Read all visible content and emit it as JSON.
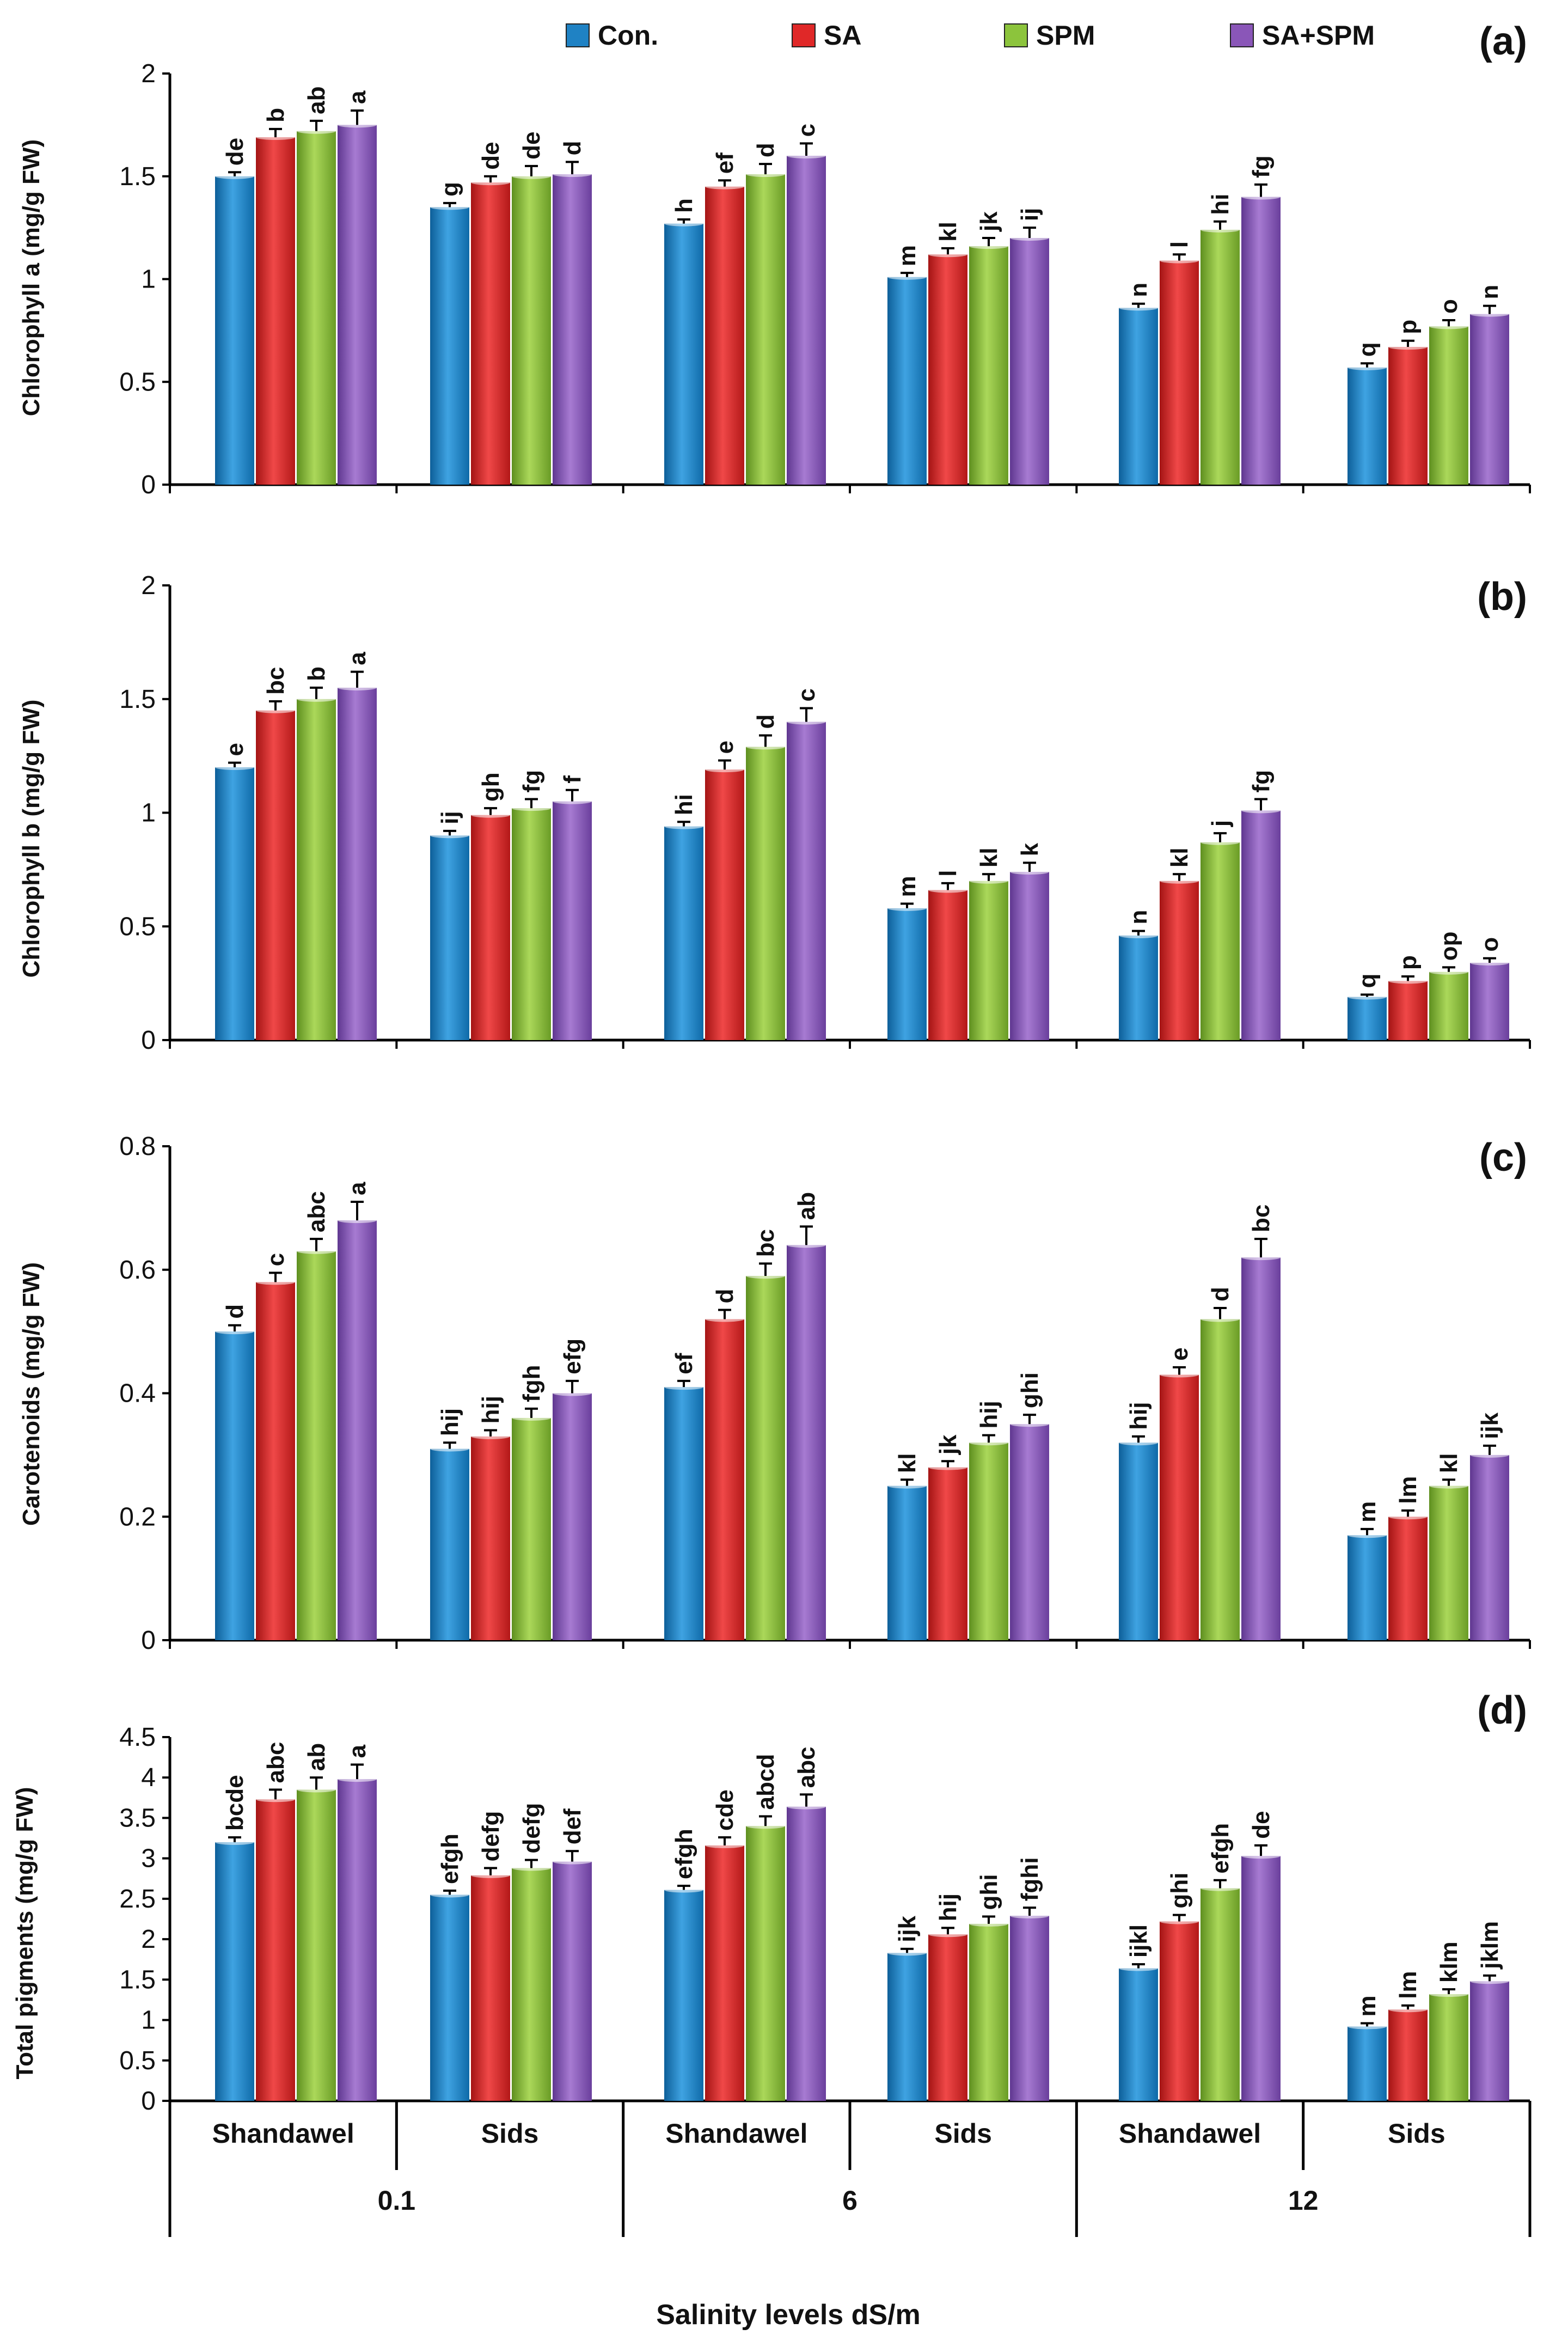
{
  "chart_data": [
    {
      "type": "bar",
      "panel": "(a)",
      "ylabel": "Chlorophyll a (mg/g FW)",
      "ylim": [
        0,
        2
      ],
      "yticks": [
        "0",
        "0.5",
        "1",
        "1.5",
        "2"
      ],
      "categories": [
        "Shandawel",
        "Sids",
        "Shandawel",
        "Sids",
        "Shandawel",
        "Sids"
      ],
      "series": [
        {
          "name": "Con.",
          "values": [
            1.5,
            1.35,
            1.27,
            1.01,
            0.86,
            0.57
          ],
          "errors": [
            0.02,
            0.02,
            0.02,
            0.02,
            0.02,
            0.02
          ],
          "letters": [
            "de",
            "g",
            "h",
            "m",
            "n",
            "q"
          ]
        },
        {
          "name": "SA",
          "values": [
            1.69,
            1.47,
            1.45,
            1.12,
            1.09,
            0.67
          ],
          "errors": [
            0.04,
            0.03,
            0.03,
            0.03,
            0.03,
            0.03
          ],
          "letters": [
            "b",
            "de",
            "ef",
            "kl",
            "l",
            "p"
          ]
        },
        {
          "name": "SPM",
          "values": [
            1.72,
            1.5,
            1.51,
            1.16,
            1.24,
            0.77
          ],
          "errors": [
            0.05,
            0.05,
            0.05,
            0.04,
            0.04,
            0.03
          ],
          "letters": [
            "ab",
            "de",
            "d",
            "jk",
            "hi",
            "o"
          ]
        },
        {
          "name": "SA+SPM",
          "values": [
            1.75,
            1.51,
            1.6,
            1.2,
            1.4,
            0.83
          ],
          "errors": [
            0.07,
            0.06,
            0.06,
            0.05,
            0.06,
            0.04
          ],
          "letters": [
            "a",
            "d",
            "c",
            "ij",
            "fg",
            "n"
          ]
        }
      ]
    },
    {
      "type": "bar",
      "panel": "(b)",
      "ylabel": "Chlorophyll b (mg/g FW)",
      "ylim": [
        0,
        2
      ],
      "yticks": [
        "0",
        "0.5",
        "1",
        "1.5",
        "2"
      ],
      "categories": [
        "Shandawel",
        "Sids",
        "Shandawel",
        "Sids",
        "Shandawel",
        "Sids"
      ],
      "series": [
        {
          "name": "Con.",
          "values": [
            1.2,
            0.9,
            0.94,
            0.58,
            0.46,
            0.19
          ],
          "errors": [
            0.02,
            0.02,
            0.02,
            0.02,
            0.02,
            0.01
          ],
          "letters": [
            "e",
            "ij",
            "hi",
            "m",
            "n",
            "q"
          ]
        },
        {
          "name": "SA",
          "values": [
            1.45,
            0.99,
            1.19,
            0.66,
            0.7,
            0.26
          ],
          "errors": [
            0.04,
            0.03,
            0.04,
            0.03,
            0.03,
            0.02
          ],
          "letters": [
            "bc",
            "gh",
            "e",
            "l",
            "kl",
            "p"
          ]
        },
        {
          "name": "SPM",
          "values": [
            1.5,
            1.02,
            1.29,
            0.7,
            0.87,
            0.3
          ],
          "errors": [
            0.05,
            0.04,
            0.05,
            0.03,
            0.04,
            0.02
          ],
          "letters": [
            "b",
            "fg",
            "d",
            "kl",
            "j",
            "op"
          ]
        },
        {
          "name": "SA+SPM",
          "values": [
            1.55,
            1.05,
            1.4,
            0.74,
            1.01,
            0.34
          ],
          "errors": [
            0.07,
            0.05,
            0.06,
            0.04,
            0.05,
            0.02
          ],
          "letters": [
            "a",
            "f",
            "c",
            "k",
            "fg",
            "o"
          ]
        }
      ]
    },
    {
      "type": "bar",
      "panel": "(c)",
      "ylabel": "Carotenoids (mg/g FW)",
      "ylim": [
        0,
        0.8
      ],
      "yticks": [
        "0",
        "0.2",
        "0.4",
        "0.6",
        "0.8"
      ],
      "categories": [
        "Shandawel",
        "Sids",
        "Shandawel",
        "Sids",
        "Shandawel",
        "Sids"
      ],
      "series": [
        {
          "name": "Con.",
          "values": [
            0.5,
            0.31,
            0.41,
            0.25,
            0.32,
            0.17
          ],
          "errors": [
            0.01,
            0.01,
            0.01,
            0.01,
            0.01,
            0.01
          ],
          "letters": [
            "d",
            "hij",
            "ef",
            "kl",
            "hij",
            "m"
          ]
        },
        {
          "name": "SA",
          "values": [
            0.58,
            0.33,
            0.52,
            0.28,
            0.43,
            0.2
          ],
          "errors": [
            0.015,
            0.01,
            0.015,
            0.01,
            0.012,
            0.01
          ],
          "letters": [
            "c",
            "hij",
            "d",
            "jk",
            "e",
            "lm"
          ]
        },
        {
          "name": "SPM",
          "values": [
            0.63,
            0.36,
            0.59,
            0.32,
            0.52,
            0.25
          ],
          "errors": [
            0.02,
            0.015,
            0.02,
            0.012,
            0.018,
            0.01
          ],
          "letters": [
            "abc",
            "fgh",
            "bc",
            "hij",
            "d",
            "kl"
          ]
        },
        {
          "name": "SA+SPM",
          "values": [
            0.68,
            0.4,
            0.64,
            0.35,
            0.62,
            0.3
          ],
          "errors": [
            0.03,
            0.02,
            0.03,
            0.015,
            0.03,
            0.015
          ],
          "letters": [
            "a",
            "efg",
            "ab",
            "ghi",
            "bc",
            "ijk"
          ]
        }
      ]
    },
    {
      "type": "bar",
      "panel": "(d)",
      "ylabel": "Total pigments (mg/g FW)",
      "ylim": [
        0,
        4.5
      ],
      "yticks": [
        "0",
        "0.5",
        "1",
        "1.5",
        "2",
        "2.5",
        "3",
        "3.5",
        "4",
        "4.5"
      ],
      "categories": [
        "Shandawel",
        "Sids",
        "Shandawel",
        "Sids",
        "Shandawel",
        "Sids"
      ],
      "series": [
        {
          "name": "Con.",
          "values": [
            3.2,
            2.55,
            2.61,
            1.83,
            1.64,
            0.92
          ],
          "errors": [
            0.06,
            0.05,
            0.05,
            0.05,
            0.05,
            0.04
          ],
          "letters": [
            "bcde",
            "efgh",
            "efgh",
            "ijk",
            "ijkl",
            "m"
          ]
        },
        {
          "name": "SA",
          "values": [
            3.73,
            2.79,
            3.16,
            2.06,
            2.22,
            1.13
          ],
          "errors": [
            0.12,
            0.09,
            0.1,
            0.08,
            0.08,
            0.05
          ],
          "letters": [
            "abc",
            "defg",
            "cde",
            "hij",
            "ghi",
            "lm"
          ]
        },
        {
          "name": "SPM",
          "values": [
            3.85,
            2.88,
            3.4,
            2.19,
            2.63,
            1.32
          ],
          "errors": [
            0.15,
            0.1,
            0.12,
            0.09,
            0.1,
            0.06
          ],
          "letters": [
            "ab",
            "defg",
            "abcd",
            "ghi",
            "efgh",
            "klm"
          ]
        },
        {
          "name": "SA+SPM",
          "values": [
            3.98,
            2.96,
            3.64,
            2.29,
            3.03,
            1.48
          ],
          "errors": [
            0.18,
            0.13,
            0.15,
            0.1,
            0.13,
            0.07
          ],
          "letters": [
            "a",
            "def",
            "abc",
            "fghi",
            "de",
            "jklm"
          ]
        }
      ]
    }
  ],
  "legend": [
    {
      "name": "Con.",
      "color": "#1f82c4"
    },
    {
      "name": "SA",
      "color": "#e02828"
    },
    {
      "name": "SPM",
      "color": "#8cc43c"
    },
    {
      "name": "SA+SPM",
      "color": "#8a56b8"
    }
  ],
  "x_categories": [
    "Shandawel",
    "Sids",
    "Shandawel",
    "Sids",
    "Shandawel",
    "Sids"
  ],
  "x_groups": [
    "0.1",
    "6",
    "12"
  ],
  "xlabel": "Salinity levels dS/m"
}
